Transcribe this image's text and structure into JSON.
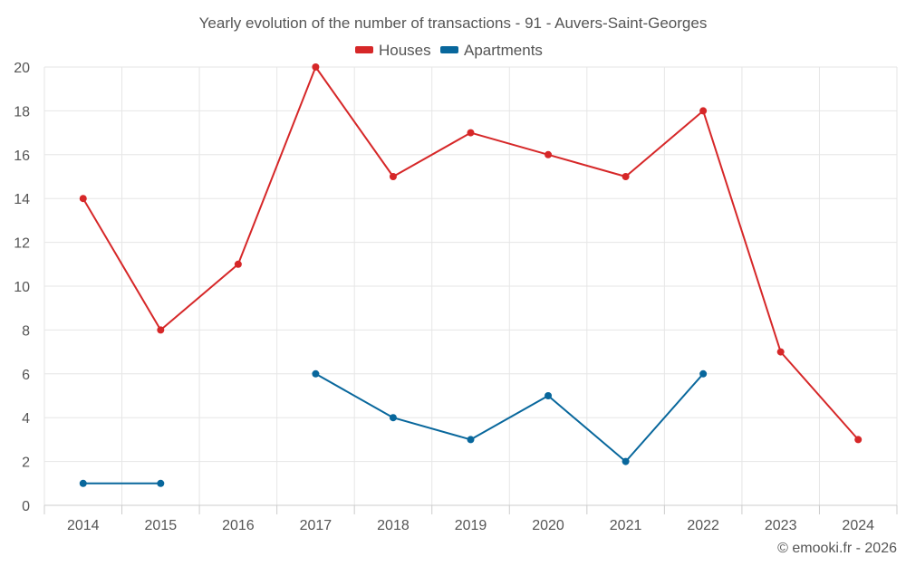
{
  "chart_data": {
    "type": "line",
    "title": "Yearly evolution of the number of transactions - 91 - Auvers-Saint-Georges",
    "x": [
      "2014",
      "2015",
      "2016",
      "2017",
      "2018",
      "2019",
      "2020",
      "2021",
      "2022",
      "2023",
      "2024"
    ],
    "ylim": [
      0,
      20
    ],
    "yticks": [
      "0",
      "2",
      "4",
      "6",
      "8",
      "10",
      "12",
      "14",
      "16",
      "18",
      "20"
    ],
    "grid": true,
    "legend": "top-center",
    "series": [
      {
        "name": "Houses",
        "color": "#d62728",
        "values": [
          14,
          8,
          11,
          20,
          15,
          17,
          16,
          15,
          18,
          7,
          3
        ]
      },
      {
        "name": "Apartments",
        "color": "#08679c",
        "values": [
          1,
          1,
          null,
          6,
          4,
          3,
          5,
          2,
          6,
          null,
          null
        ]
      }
    ]
  },
  "credit": "© emooki.fr - 2026"
}
